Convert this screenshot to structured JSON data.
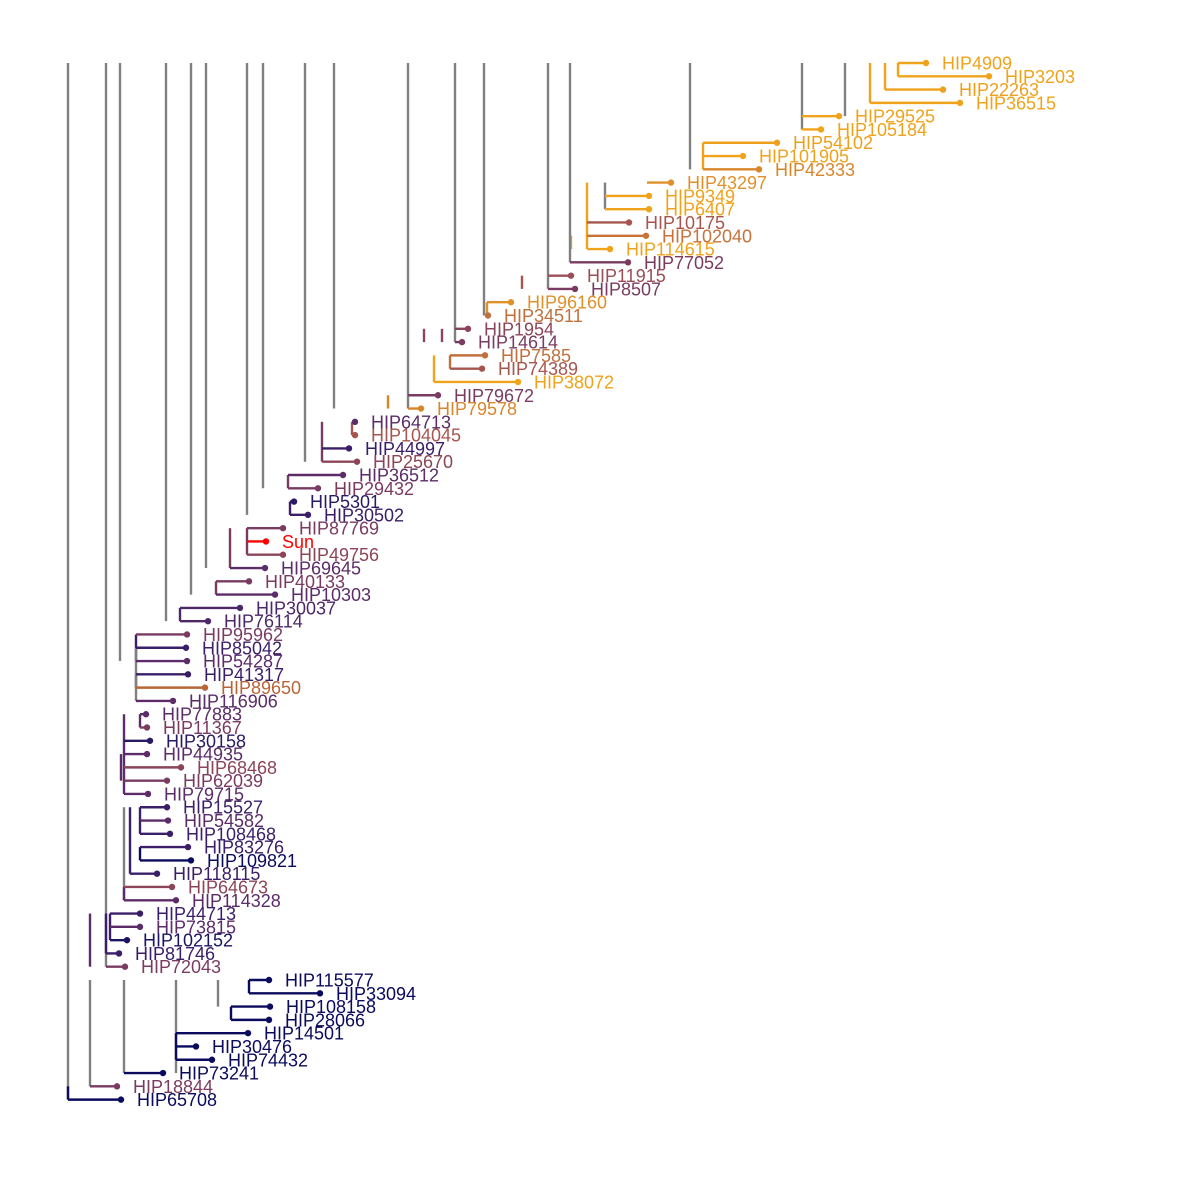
{
  "diagram": {
    "type": "phylogenetic-tree",
    "internal_branch_color": "#808080",
    "highlight_color": "#ff0000",
    "color_scale": [
      "#0b0b5e",
      "#3e1f6e",
      "#7a3b6a",
      "#a6564f",
      "#cc7330",
      "#f0a31a"
    ]
  },
  "leaves": [
    {
      "label": "HIP4909",
      "color": "#f0a31a"
    },
    {
      "label": "HIP3203",
      "color": "#f0a31a"
    },
    {
      "label": "HIP22263",
      "color": "#eea01c"
    },
    {
      "label": "HIP36515",
      "color": "#f0a31a"
    },
    {
      "label": "HIP29525",
      "color": "#f0a31a"
    },
    {
      "label": "HIP105184",
      "color": "#f0a31a"
    },
    {
      "label": "HIP54102",
      "color": "#eea01c"
    },
    {
      "label": "HIP101905",
      "color": "#f0a31a"
    },
    {
      "label": "HIP42333",
      "color": "#d9862a"
    },
    {
      "label": "HIP43297",
      "color": "#e0902a"
    },
    {
      "label": "HIP9349",
      "color": "#f0a31a"
    },
    {
      "label": "HIP6407",
      "color": "#f0a31a"
    },
    {
      "label": "HIP10175",
      "color": "#a6564f"
    },
    {
      "label": "HIP102040",
      "color": "#c97138"
    },
    {
      "label": "HIP114615",
      "color": "#f0a31a"
    },
    {
      "label": "HIP77052",
      "color": "#7a3b5f"
    },
    {
      "label": "HIP11915",
      "color": "#9b4e57"
    },
    {
      "label": "HIP8507",
      "color": "#7a3b62"
    },
    {
      "label": "HIP96160",
      "color": "#e0902a"
    },
    {
      "label": "HIP34511",
      "color": "#c0703d"
    },
    {
      "label": "HIP1954",
      "color": "#8c4558"
    },
    {
      "label": "HIP14614",
      "color": "#7a3b62"
    },
    {
      "label": "HIP7585",
      "color": "#c0703d"
    },
    {
      "label": "HIP74389",
      "color": "#a6564f"
    },
    {
      "label": "HIP38072",
      "color": "#f0a31a"
    },
    {
      "label": "HIP79672",
      "color": "#7a3b62"
    },
    {
      "label": "HIP79578",
      "color": "#d9862a"
    },
    {
      "label": "HIP64713",
      "color": "#5b2c68"
    },
    {
      "label": "HIP104045",
      "color": "#a6564f"
    },
    {
      "label": "HIP44997",
      "color": "#3a1f68"
    },
    {
      "label": "HIP25670",
      "color": "#8c4558"
    },
    {
      "label": "HIP36512",
      "color": "#5b2c68"
    },
    {
      "label": "HIP29432",
      "color": "#7a3b62"
    },
    {
      "label": "HIP5301",
      "color": "#2a1a63"
    },
    {
      "label": "HIP30502",
      "color": "#3a1f68"
    },
    {
      "label": "HIP87769",
      "color": "#7a3b62"
    },
    {
      "label": "Sun",
      "color": "#ff0000"
    },
    {
      "label": "HIP49756",
      "color": "#8c4558"
    },
    {
      "label": "HIP69645",
      "color": "#5b2c68"
    },
    {
      "label": "HIP40133",
      "color": "#7a3b62"
    },
    {
      "label": "HIP10303",
      "color": "#5b2c68"
    },
    {
      "label": "HIP30037",
      "color": "#4c2868"
    },
    {
      "label": "HIP76114",
      "color": "#4c2868"
    },
    {
      "label": "HIP95962",
      "color": "#7a3b62"
    },
    {
      "label": "HIP85042",
      "color": "#3a1f68"
    },
    {
      "label": "HIP54287",
      "color": "#5b2c68"
    },
    {
      "label": "HIP41317",
      "color": "#3a1f68"
    },
    {
      "label": "HIP89650",
      "color": "#b86437"
    },
    {
      "label": "HIP116906",
      "color": "#5b2c68"
    },
    {
      "label": "HIP77883",
      "color": "#5b2c68"
    },
    {
      "label": "HIP11367",
      "color": "#7a3b62"
    },
    {
      "label": "HIP30158",
      "color": "#2a1a63"
    },
    {
      "label": "HIP44935",
      "color": "#5b2c68"
    },
    {
      "label": "HIP68468",
      "color": "#8c4558"
    },
    {
      "label": "HIP62039",
      "color": "#7a3b62"
    },
    {
      "label": "HIP79715",
      "color": "#5b2c68"
    },
    {
      "label": "HIP15527",
      "color": "#3a1f68"
    },
    {
      "label": "HIP54582",
      "color": "#5b2c68"
    },
    {
      "label": "HIP108468",
      "color": "#3a1f68"
    },
    {
      "label": "HIP83276",
      "color": "#3a1f68"
    },
    {
      "label": "HIP109821",
      "color": "#0b0b5e"
    },
    {
      "label": "HIP118115",
      "color": "#3a1f68"
    },
    {
      "label": "HIP64673",
      "color": "#8c4558"
    },
    {
      "label": "HIP114328",
      "color": "#5b2c68"
    },
    {
      "label": "HIP44713",
      "color": "#3a1f68"
    },
    {
      "label": "HIP73815",
      "color": "#5b2c68"
    },
    {
      "label": "HIP102152",
      "color": "#1a1463"
    },
    {
      "label": "HIP81746",
      "color": "#3a1f68"
    },
    {
      "label": "HIP72043",
      "color": "#7a3b62"
    },
    {
      "label": "HIP115577",
      "color": "#0b0b5e"
    },
    {
      "label": "HIP33094",
      "color": "#0b0b5e"
    },
    {
      "label": "HIP108158",
      "color": "#0b0b5e"
    },
    {
      "label": "HIP28066",
      "color": "#0b0b5e"
    },
    {
      "label": "HIP14501",
      "color": "#0b0b5e"
    },
    {
      "label": "HIP30476",
      "color": "#0b0b5e"
    },
    {
      "label": "HIP74432",
      "color": "#0b0b5e"
    },
    {
      "label": "HIP73241",
      "color": "#0b0b5e"
    },
    {
      "label": "HIP18844",
      "color": "#7a3b62"
    },
    {
      "label": "HIP65708",
      "color": "#0b0b5e"
    }
  ]
}
